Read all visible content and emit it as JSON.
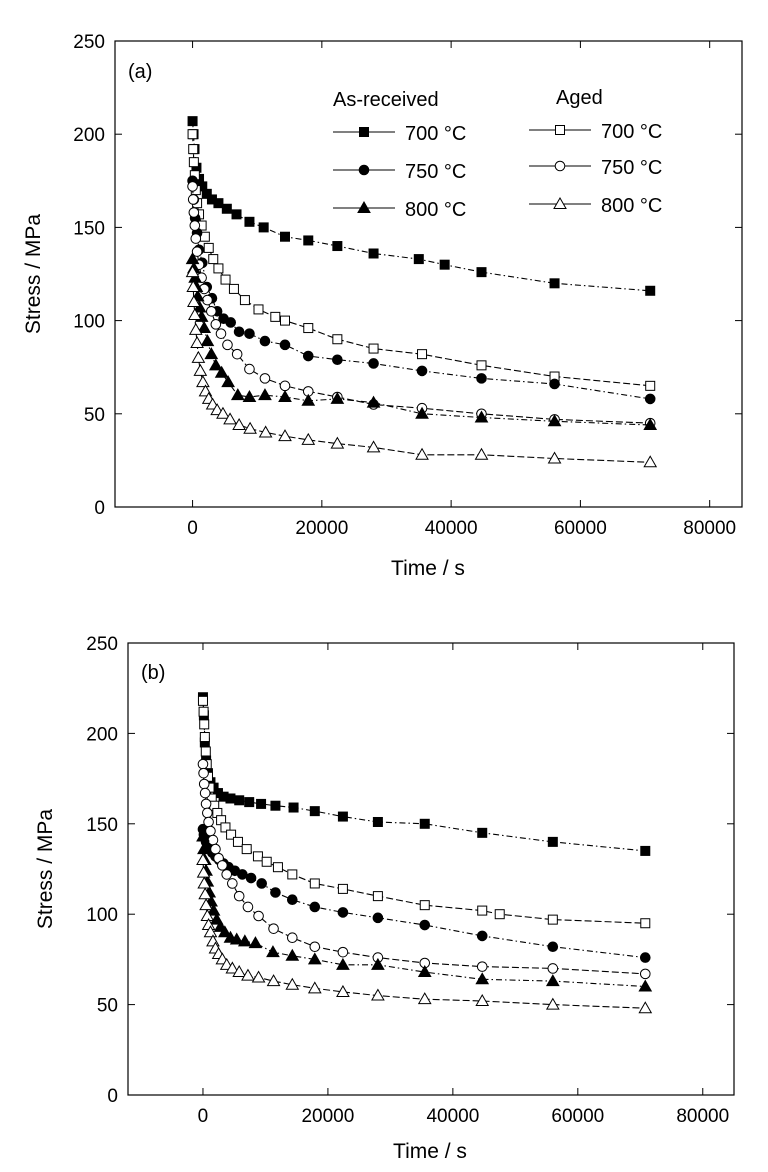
{
  "chart_data": [
    {
      "type": "line",
      "panel_label": "(a)",
      "xlabel": "Time / s",
      "ylabel": "Stress / MPa",
      "xlim": [
        -12000,
        85000
      ],
      "ylim": [
        0,
        250
      ],
      "xticks": [
        "0",
        "20000",
        "40000",
        "60000",
        "80000"
      ],
      "yticks": [
        "0",
        "50",
        "100",
        "150",
        "200",
        "250"
      ],
      "legend_groups": [
        {
          "title": "As-received",
          "entries": [
            "700 °C",
            "750 °C",
            "800 °C"
          ]
        },
        {
          "title": "Aged",
          "entries": [
            "700 °C",
            "750 °C",
            "800 °C"
          ]
        }
      ],
      "series": [
        {
          "group": "As-received",
          "label": "700 °C",
          "marker": "square",
          "fill": "filled",
          "x": [
            0,
            150,
            300,
            600,
            1000,
            1500,
            2200,
            3000,
            4000,
            5300,
            6800,
            8800,
            11000,
            14300,
            17900,
            22400,
            28000,
            35000,
            39000,
            44700,
            56000,
            70800
          ],
          "y": [
            207,
            200,
            192,
            182,
            176,
            172,
            168,
            165,
            163,
            160,
            157,
            153,
            150,
            145,
            143,
            140,
            136,
            133,
            130,
            126,
            120,
            116
          ]
        },
        {
          "group": "Aged",
          "label": "700 °C",
          "marker": "square",
          "fill": "open",
          "x": [
            0,
            100,
            200,
            350,
            500,
            700,
            1000,
            1400,
            1900,
            2500,
            3200,
            4000,
            5100,
            6400,
            8100,
            10200,
            12800,
            14300,
            17900,
            22400,
            28000,
            35500,
            44700,
            56000,
            70800
          ],
          "y": [
            200,
            192,
            185,
            178,
            170,
            163,
            157,
            151,
            145,
            139,
            133,
            128,
            122,
            117,
            111,
            106,
            102,
            100,
            96,
            90,
            85,
            82,
            76,
            70,
            65
          ]
        },
        {
          "group": "As-received",
          "label": "750 °C",
          "marker": "circle",
          "fill": "filled",
          "x": [
            0,
            200,
            400,
            700,
            1000,
            1500,
            2200,
            3000,
            3800,
            4800,
            5900,
            7200,
            8800,
            11200,
            14300,
            17900,
            22400,
            28000,
            35500,
            44700,
            56000,
            70800
          ],
          "y": [
            175,
            165,
            155,
            147,
            138,
            131,
            118,
            112,
            105,
            101,
            99,
            94,
            93,
            89,
            87,
            81,
            79,
            77,
            73,
            69,
            66,
            58
          ]
        },
        {
          "group": "Aged",
          "label": "750 °C",
          "marker": "circle",
          "fill": "open",
          "x": [
            0,
            100,
            200,
            350,
            500,
            700,
            1000,
            1400,
            1800,
            2300,
            2900,
            3600,
            4400,
            5400,
            6900,
            8800,
            11200,
            14300,
            17900,
            22400,
            28000,
            35500,
            44700,
            56000,
            70800
          ],
          "y": [
            172,
            165,
            158,
            151,
            144,
            137,
            130,
            123,
            117,
            111,
            105,
            98,
            93,
            87,
            82,
            74,
            69,
            65,
            62,
            59,
            55,
            53,
            50,
            47,
            45
          ]
        },
        {
          "group": "As-received",
          "label": "800 °C",
          "marker": "triangle",
          "fill": "filled",
          "x": [
            0,
            200,
            400,
            600,
            800,
            1100,
            1400,
            1800,
            2300,
            2900,
            3600,
            4500,
            5500,
            7000,
            8800,
            11200,
            14300,
            17900,
            22400,
            28000,
            35500,
            44700,
            56000,
            70800
          ],
          "y": [
            133,
            128,
            123,
            118,
            113,
            107,
            102,
            96,
            89,
            82,
            76,
            72,
            67,
            60,
            59,
            60,
            59,
            57,
            58,
            56,
            50,
            48,
            46,
            44
          ]
        },
        {
          "group": "Aged",
          "label": "800 °C",
          "marker": "triangle",
          "fill": "open",
          "x": [
            0,
            100,
            200,
            350,
            500,
            700,
            900,
            1200,
            1600,
            2000,
            2500,
            3100,
            3800,
            4700,
            5800,
            7200,
            8900,
            11300,
            14300,
            17900,
            22400,
            28000,
            35500,
            44700,
            56000,
            70800
          ],
          "y": [
            126,
            118,
            110,
            103,
            95,
            88,
            80,
            73,
            67,
            62,
            58,
            55,
            52,
            50,
            47,
            44,
            42,
            40,
            38,
            36,
            34,
            32,
            28,
            28,
            26,
            24
          ]
        }
      ]
    },
    {
      "type": "line",
      "panel_label": "(b)",
      "xlabel": "Time / s",
      "ylabel": "Stress / MPa",
      "xlim": [
        -12000,
        85000
      ],
      "ylim": [
        0,
        250
      ],
      "xticks": [
        "0",
        "20000",
        "40000",
        "60000",
        "80000"
      ],
      "yticks": [
        "0",
        "50",
        "100",
        "150",
        "200",
        "250"
      ],
      "series": [
        {
          "group": "As-received",
          "label": "700 °C",
          "marker": "square",
          "fill": "filled",
          "x": [
            0,
            150,
            300,
            500,
            800,
            1200,
            1700,
            2400,
            3300,
            4400,
            5800,
            7400,
            9300,
            11600,
            14500,
            17900,
            22400,
            28000,
            35500,
            44700,
            56000,
            70800
          ],
          "y": [
            220,
            210,
            195,
            185,
            178,
            173,
            170,
            167,
            165,
            164,
            163,
            162,
            161,
            160,
            159,
            157,
            154,
            151,
            150,
            145,
            140,
            135
          ]
        },
        {
          "group": "Aged",
          "label": "700 °C",
          "marker": "square",
          "fill": "open",
          "x": [
            0,
            100,
            200,
            300,
            450,
            600,
            800,
            1050,
            1400,
            1800,
            2300,
            2900,
            3600,
            4500,
            5600,
            7000,
            8800,
            10200,
            12000,
            14300,
            17900,
            22400,
            28000,
            35500,
            44700,
            47500,
            56000,
            70800
          ],
          "y": [
            218,
            212,
            205,
            198,
            190,
            183,
            176,
            170,
            164,
            160,
            156,
            152,
            148,
            144,
            140,
            136,
            132,
            129,
            126,
            122,
            117,
            114,
            110,
            105,
            102,
            100,
            97,
            95
          ]
        },
        {
          "group": "As-received",
          "label": "750 °C",
          "marker": "circle",
          "fill": "filled",
          "x": [
            0,
            150,
            300,
            500,
            800,
            1100,
            1500,
            2000,
            2600,
            3300,
            4100,
            5100,
            6300,
            7700,
            9400,
            11600,
            14300,
            17900,
            22400,
            28000,
            35500,
            44700,
            56000,
            70800
          ],
          "y": [
            147,
            144,
            142,
            140,
            138,
            136,
            134,
            132,
            130,
            128,
            126,
            124,
            122,
            120,
            117,
            112,
            108,
            104,
            101,
            98,
            94,
            88,
            82,
            76
          ]
        },
        {
          "group": "Aged",
          "label": "750 °C",
          "marker": "circle",
          "fill": "open",
          "x": [
            0,
            100,
            200,
            350,
            500,
            700,
            900,
            1200,
            1600,
            2000,
            2500,
            3100,
            3800,
            4700,
            5800,
            7200,
            8900,
            11300,
            14300,
            17900,
            22400,
            28000,
            35500,
            44700,
            56000,
            70800
          ],
          "y": [
            183,
            178,
            172,
            167,
            161,
            156,
            151,
            146,
            141,
            136,
            131,
            127,
            122,
            117,
            110,
            104,
            99,
            92,
            87,
            82,
            79,
            76,
            73,
            71,
            70,
            67
          ]
        },
        {
          "group": "As-received",
          "label": "800 °C",
          "marker": "triangle",
          "fill": "filled",
          "x": [
            0,
            150,
            300,
            500,
            700,
            1000,
            1300,
            1700,
            2200,
            2800,
            3500,
            4400,
            5400,
            6700,
            8400,
            11200,
            14300,
            17900,
            22400,
            28000,
            35500,
            44700,
            56000,
            70800
          ],
          "y": [
            143,
            136,
            130,
            124,
            118,
            112,
            107,
            102,
            97,
            93,
            90,
            87,
            86,
            85,
            84,
            79,
            77,
            75,
            72,
            72,
            68,
            64,
            63,
            60
          ]
        },
        {
          "group": "Aged",
          "label": "800 °C",
          "marker": "triangle",
          "fill": "open",
          "x": [
            0,
            100,
            200,
            350,
            500,
            700,
            900,
            1200,
            1600,
            2000,
            2500,
            3100,
            3800,
            4700,
            5800,
            7200,
            8900,
            11300,
            14300,
            17900,
            22400,
            28000,
            35500,
            44700,
            56000,
            70800
          ],
          "y": [
            130,
            123,
            117,
            111,
            105,
            99,
            94,
            90,
            85,
            81,
            78,
            75,
            72,
            70,
            68,
            66,
            65,
            63,
            61,
            59,
            57,
            55,
            53,
            52,
            50,
            48
          ]
        }
      ]
    }
  ]
}
